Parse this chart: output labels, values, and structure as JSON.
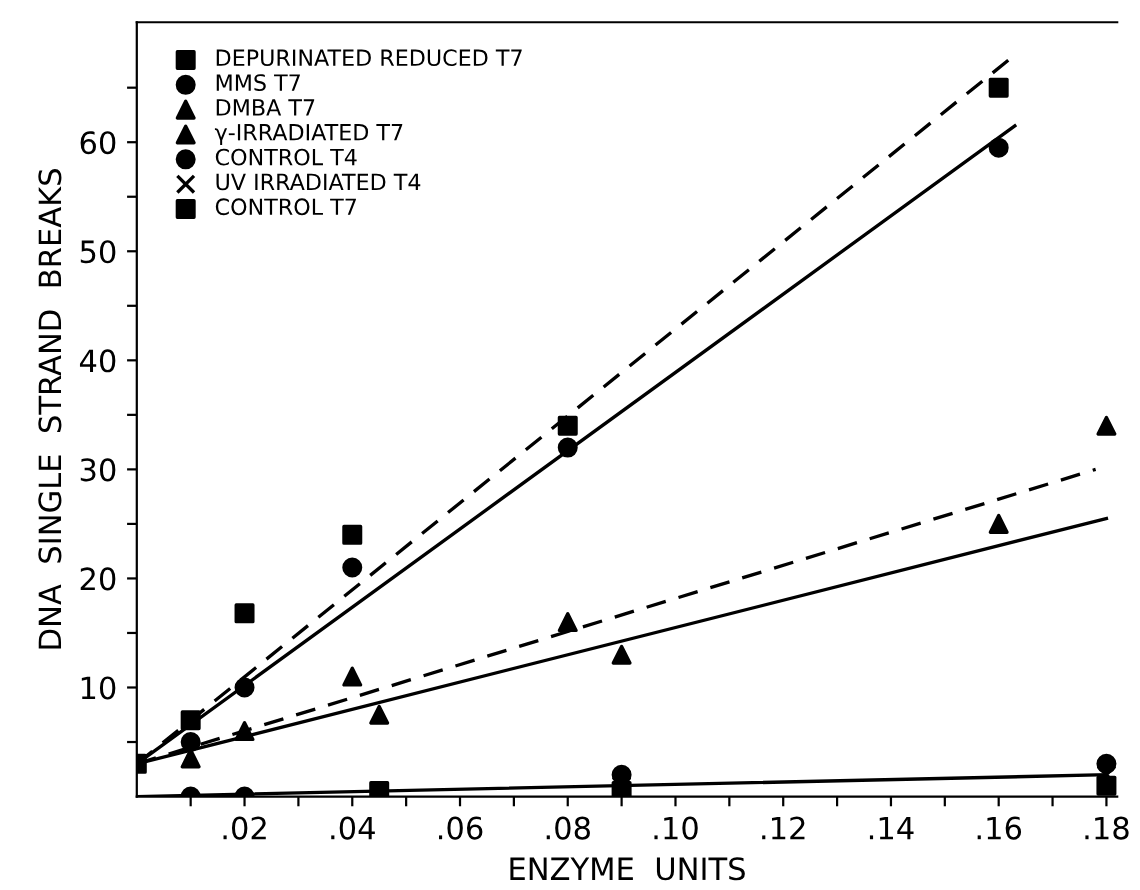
{
  "chart_data": {
    "type": "scatter",
    "xlabel": "ENZYME  UNITS",
    "ylabel": "DNA  SINGLE  STRAND  BREAKS",
    "xlim": [
      0,
      0.182
    ],
    "ylim": [
      0,
      71
    ],
    "xticks": [
      {
        "value": 0.01,
        "label": null
      },
      {
        "value": 0.02,
        "label": ".02"
      },
      {
        "value": 0.03,
        "label": null
      },
      {
        "value": 0.04,
        "label": ".04"
      },
      {
        "value": 0.05,
        "label": null
      },
      {
        "value": 0.06,
        "label": ".06"
      },
      {
        "value": 0.07,
        "label": null
      },
      {
        "value": 0.08,
        "label": ".08"
      },
      {
        "value": 0.09,
        "label": null
      },
      {
        "value": 0.1,
        "label": ".10"
      },
      {
        "value": 0.11,
        "label": null
      },
      {
        "value": 0.12,
        "label": ".12"
      },
      {
        "value": 0.13,
        "label": null
      },
      {
        "value": 0.14,
        "label": ".14"
      },
      {
        "value": 0.15,
        "label": null
      },
      {
        "value": 0.16,
        "label": ".16"
      },
      {
        "value": 0.17,
        "label": null
      },
      {
        "value": 0.18,
        "label": ".18"
      }
    ],
    "yticks": [
      {
        "value": 5,
        "label": null
      },
      10,
      {
        "value": 15,
        "label": null
      },
      20,
      {
        "value": 25,
        "label": null
      },
      30,
      {
        "value": 35,
        "label": null
      },
      40,
      {
        "value": 45,
        "label": null
      },
      50,
      {
        "value": 55,
        "label": null
      },
      60,
      {
        "value": 65,
        "label": null
      }
    ],
    "legend": "top left",
    "grid": false,
    "series": [
      {
        "name": "DEPURINATED REDUCED T7",
        "color": "#000000",
        "marker": "square",
        "x": [
          0,
          0.01,
          0.02,
          0.04,
          0.08,
          0.16
        ],
        "values": [
          3,
          7,
          16.8,
          24,
          34,
          65
        ]
      },
      {
        "name": "MMS T7",
        "color": "#000000",
        "marker": "circle",
        "x": [
          0.01,
          0.02,
          0.04,
          0.08,
          0.16
        ],
        "values": [
          5,
          10,
          21,
          32,
          59.5
        ]
      },
      {
        "name": "DMBA T7",
        "color": "#000000",
        "marker": "triangle",
        "x": [
          0.01,
          0.02,
          0.04,
          0.08,
          0.16
        ],
        "values": [
          3.5,
          6,
          11,
          16,
          25
        ]
      },
      {
        "name": "γ-IRRADIATED T7",
        "color": "#000000",
        "marker": "triangle",
        "x": [
          0.045,
          0.09,
          0.18
        ],
        "values": [
          7.5,
          13,
          34
        ]
      },
      {
        "name": "CONTROL T4",
        "color": "#000000",
        "marker": "circle",
        "x": [
          0.01,
          0.02,
          0.09,
          0.18
        ],
        "values": [
          0,
          0,
          2,
          3
        ]
      },
      {
        "name": "UV IRRADIATED T4",
        "color": "#000000",
        "marker": "cross",
        "x": [
          0.09,
          0.18
        ],
        "values": [
          1,
          2
        ]
      },
      {
        "name": "CONTROL T7",
        "color": "#000000",
        "marker": "square",
        "x": [
          0.045,
          0.09,
          0.18
        ],
        "values": [
          0.5,
          0.5,
          1
        ]
      },
      {
        "type": "line",
        "color": "#000000",
        "line_style": "dashed",
        "x": [
          0,
          0.163
        ],
        "values": [
          3,
          68
        ]
      },
      {
        "type": "line",
        "color": "#000000",
        "line_style": "solid",
        "x": [
          0,
          0.163
        ],
        "values": [
          3,
          61.5
        ]
      },
      {
        "type": "line",
        "color": "#000000",
        "line_style": "dashed",
        "x": [
          0,
          0.178
        ],
        "values": [
          3,
          30
        ]
      },
      {
        "type": "line",
        "color": "#000000",
        "line_style": "solid",
        "x": [
          0,
          0.18
        ],
        "values": [
          3,
          25.5
        ]
      },
      {
        "type": "line",
        "color": "#000000",
        "line_style": "solid",
        "x": [
          0,
          0.18
        ],
        "values": [
          0,
          2
        ]
      }
    ]
  }
}
